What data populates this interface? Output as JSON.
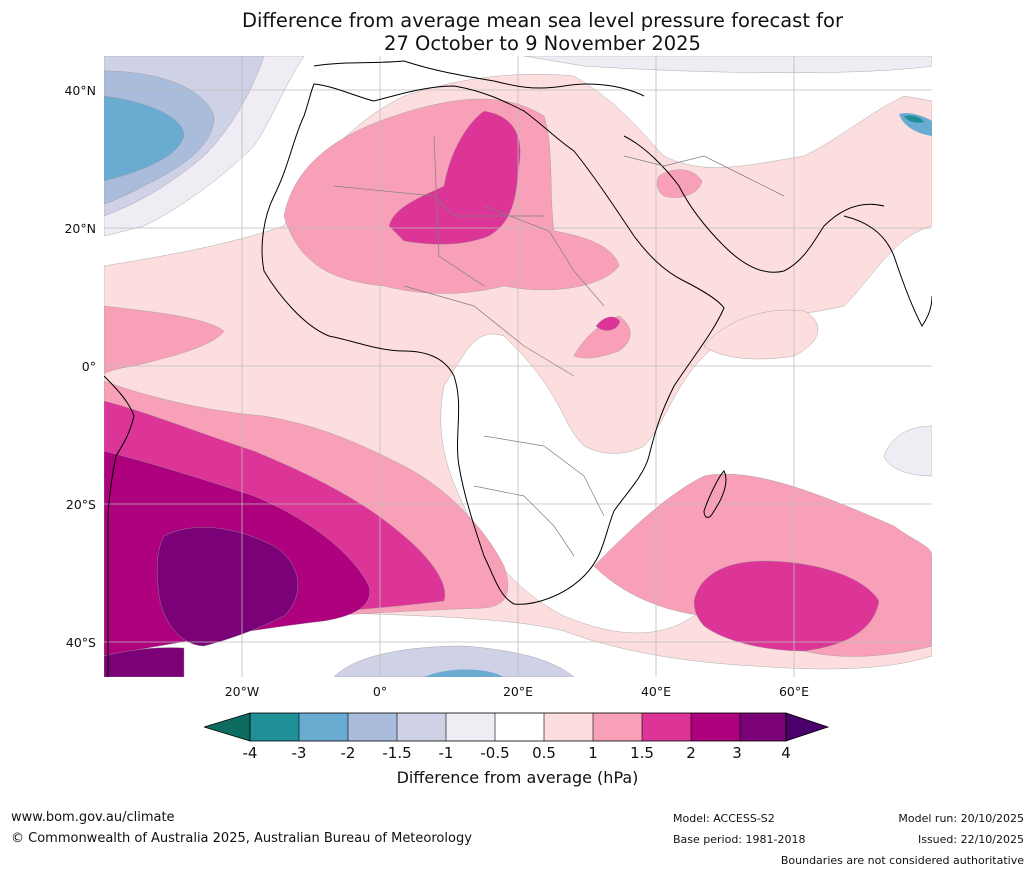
{
  "title": {
    "line1": "Difference from average mean sea level pressure forecast for",
    "line2": "27 October to 9 November 2025"
  },
  "map": {
    "region": "Africa, Middle East and surrounding oceans",
    "lat_labels": [
      "40°N",
      "20°N",
      "0°",
      "20°S",
      "40°S"
    ],
    "lon_labels": [
      "20°W",
      "0°",
      "20°E",
      "40°E",
      "60°E"
    ]
  },
  "colorbar": {
    "ticks": [
      "-4",
      "-3",
      "-2",
      "-1.5",
      "-1",
      "-0.5",
      "0.5",
      "1",
      "1.5",
      "2",
      "3",
      "4"
    ],
    "colors": {
      "below_-4": "#0e6b5f",
      "-4_-3": "#1f8f98",
      "-3_-2": "#6aabd2",
      "-2_-1.5": "#a9bcdb",
      "-1.5_-1": "#cfd1e6",
      "-1_-0.5": "#f0ecf4",
      "-0.5_0.5": "#ffffff",
      "0.5_1": "#fddede",
      "1_1.5": "#f9a0b9",
      "1.5_2": "#dd3497",
      "2_3": "#ae017e",
      "3_4": "#7a0177",
      "above_4": "#49006a"
    },
    "label": "Difference from average (hPa)"
  },
  "footer": {
    "website": "www.bom.gov.au/climate",
    "copyright": "© Commonwealth of Australia 2025, Australian Bureau of Meteorology",
    "model": "Model: ACCESS-S2",
    "base_period": "Base period: 1981-2018",
    "model_run": "Model run: 20/10/2025",
    "issued": "Issued: 22/10/2025",
    "disclaimer": "Boundaries are not considered authoritative"
  }
}
